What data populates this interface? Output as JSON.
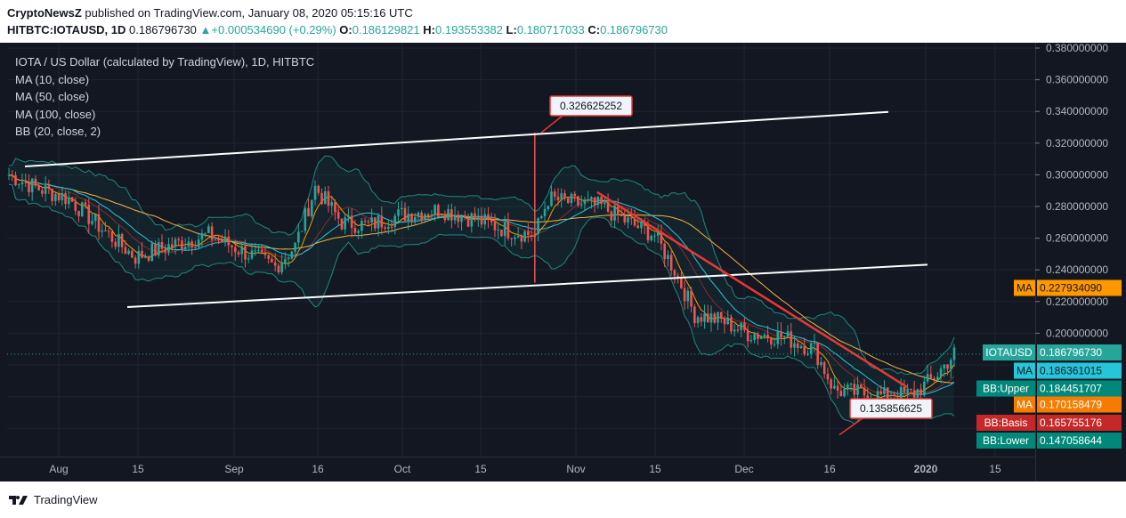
{
  "header": {
    "publisher": "CryptoNewsZ",
    "published_text": "published on TradingView.com, January 08, 2020 05:15:16 UTC",
    "symbol_line": "HITBTC:IOTAUSD, 1D",
    "last": "0.186796730",
    "change": "+0.000534690 (+0.29%)",
    "o_label": "O:",
    "o": "0.186129821",
    "h_label": "H:",
    "h": "0.193553382",
    "l_label": "L:",
    "l": "0.180717033",
    "c_label": "C:",
    "c": "0.186796730"
  },
  "legend": {
    "title": "IOTA / US Dollar (calculated by TradingView), 1D, HITBTC",
    "ma10": "MA (10, close)",
    "ma50": "MA (50, close)",
    "ma100": "MA (100, close)",
    "bb": "BB (20, close, 2)"
  },
  "footer": {
    "brand": "TradingView"
  },
  "chart_data": {
    "type": "candlestick",
    "y_axis_ticks": [
      "0.380000000",
      "0.360000000",
      "0.340000000",
      "0.320000000",
      "0.300000000",
      "0.280000000",
      "0.260000000",
      "0.240000000",
      "0.220000000",
      "0.200000000"
    ],
    "x_axis_ticks": [
      "Aug",
      "15",
      "Sep",
      "16",
      "Oct",
      "15",
      "Nov",
      "15",
      "Dec",
      "16",
      "2020",
      "15"
    ],
    "annotations": [
      "0.326625252",
      "0.135856625"
    ],
    "price_labels": [
      {
        "label": "MA",
        "value": "0.227934090",
        "color": "#ff9800"
      },
      {
        "label": "IOTAUSD",
        "value": "0.186796730",
        "color": "#26a69a"
      },
      {
        "label": "MA",
        "value": "0.186361015",
        "color": "#26c6da"
      },
      {
        "label": "BB:Upper",
        "value": "0.184451707",
        "color": "#00897b"
      },
      {
        "label": "MA",
        "value": "0.170158479",
        "color": "#f57c00"
      },
      {
        "label": "BB:Basis",
        "value": "0.165755176",
        "color": "#c62828"
      },
      {
        "label": "BB:Lower",
        "value": "0.147058644",
        "color": "#00897b"
      }
    ],
    "colors": {
      "up": "#26a69a",
      "down": "#ef5350",
      "ma10": "#ff9800",
      "ma100": "#f5b342",
      "ma50": "#26c6da",
      "bb": "#26a69a"
    }
  }
}
